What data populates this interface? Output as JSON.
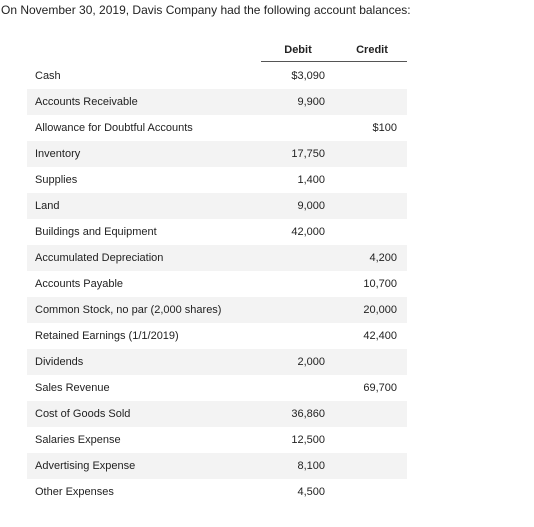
{
  "intro": "On November 30, 2019, Davis Company had the following account balances:",
  "headers": {
    "debit": "Debit",
    "credit": "Credit"
  },
  "rows": [
    {
      "label": "Cash",
      "debit": "$3,090",
      "credit": ""
    },
    {
      "label": "Accounts Receivable",
      "debit": "9,900",
      "credit": ""
    },
    {
      "label": "Allowance for Doubtful Accounts",
      "debit": "",
      "credit": "$100"
    },
    {
      "label": "Inventory",
      "debit": "17,750",
      "credit": ""
    },
    {
      "label": "Supplies",
      "debit": "1,400",
      "credit": ""
    },
    {
      "label": "Land",
      "debit": "9,000",
      "credit": ""
    },
    {
      "label": "Buildings and Equipment",
      "debit": "42,000",
      "credit": ""
    },
    {
      "label": "Accumulated Depreciation",
      "debit": "",
      "credit": "4,200"
    },
    {
      "label": "Accounts Payable",
      "debit": "",
      "credit": "10,700"
    },
    {
      "label": "Common Stock, no par (2,000 shares)",
      "debit": "",
      "credit": "20,000"
    },
    {
      "label": "Retained Earnings (1/1/2019)",
      "debit": "",
      "credit": "42,400"
    },
    {
      "label": "Dividends",
      "debit": "2,000",
      "credit": ""
    },
    {
      "label": "Sales Revenue",
      "debit": "",
      "credit": "69,700"
    },
    {
      "label": "Cost of Goods Sold",
      "debit": "36,860",
      "credit": ""
    },
    {
      "label": "Salaries Expense",
      "debit": "12,500",
      "credit": ""
    },
    {
      "label": "Advertising Expense",
      "debit": "8,100",
      "credit": ""
    },
    {
      "label": "Other Expenses",
      "debit": "4,500",
      "credit": ""
    }
  ]
}
